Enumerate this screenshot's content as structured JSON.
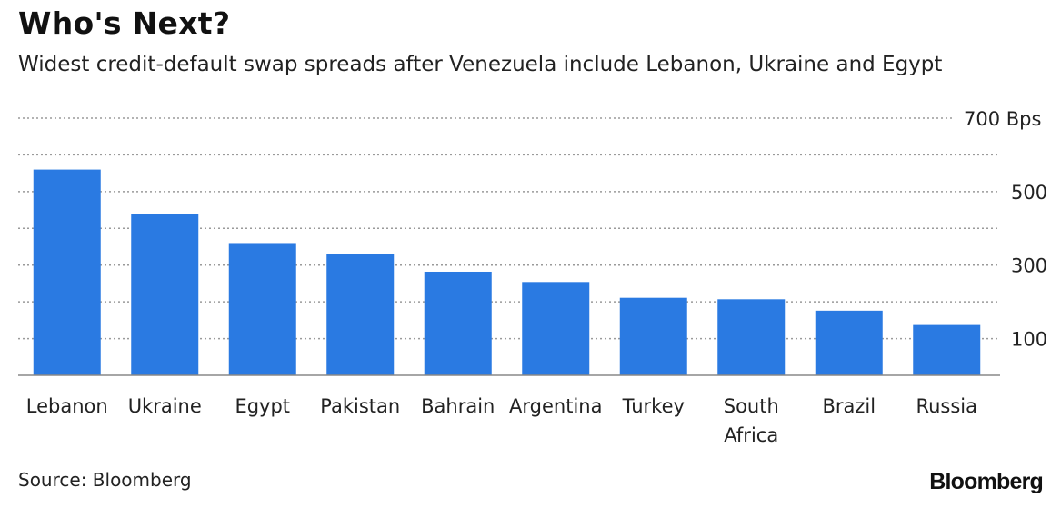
{
  "header": {
    "title": "Who's Next?",
    "subtitle": "Widest credit-default swap spreads after Venezuela include Lebanon, Ukraine and Egypt"
  },
  "footer": {
    "source": "Source: Bloomberg",
    "brand": "Bloomberg"
  },
  "colors": {
    "bar": "#2a7ae2",
    "grid": "#9a9a9a",
    "axis": "#888888",
    "text": "#222222"
  },
  "chart_data": {
    "type": "bar",
    "title": "Who's Next?",
    "subtitle": "Widest credit-default swap spreads after Venezuela include Lebanon, Ukraine and Egypt",
    "categories": [
      "Lebanon",
      "Ukraine",
      "Egypt",
      "Pakistan",
      "Bahrain",
      "Argentina",
      "Turkey",
      "South Africa",
      "Brazil",
      "Russia"
    ],
    "category_lines": [
      [
        "Lebanon"
      ],
      [
        "Ukraine"
      ],
      [
        "Egypt"
      ],
      [
        "Pakistan"
      ],
      [
        "Bahrain"
      ],
      [
        "Argentina"
      ],
      [
        "Turkey"
      ],
      [
        "South",
        "Africa"
      ],
      [
        "Brazil"
      ],
      [
        "Russia"
      ]
    ],
    "values": [
      560,
      440,
      360,
      330,
      282,
      254,
      211,
      207,
      176,
      137
    ],
    "xlabel": "",
    "ylabel": "",
    "ylim": [
      0,
      700
    ],
    "yticks": [
      100,
      300,
      500,
      700
    ],
    "ytick_labels": [
      "100",
      "300",
      "500",
      "700 Bps"
    ],
    "minor_gridlines": [
      200,
      400,
      600
    ],
    "grid": true,
    "grid_style": "dotted",
    "y_axis_side": "right"
  }
}
